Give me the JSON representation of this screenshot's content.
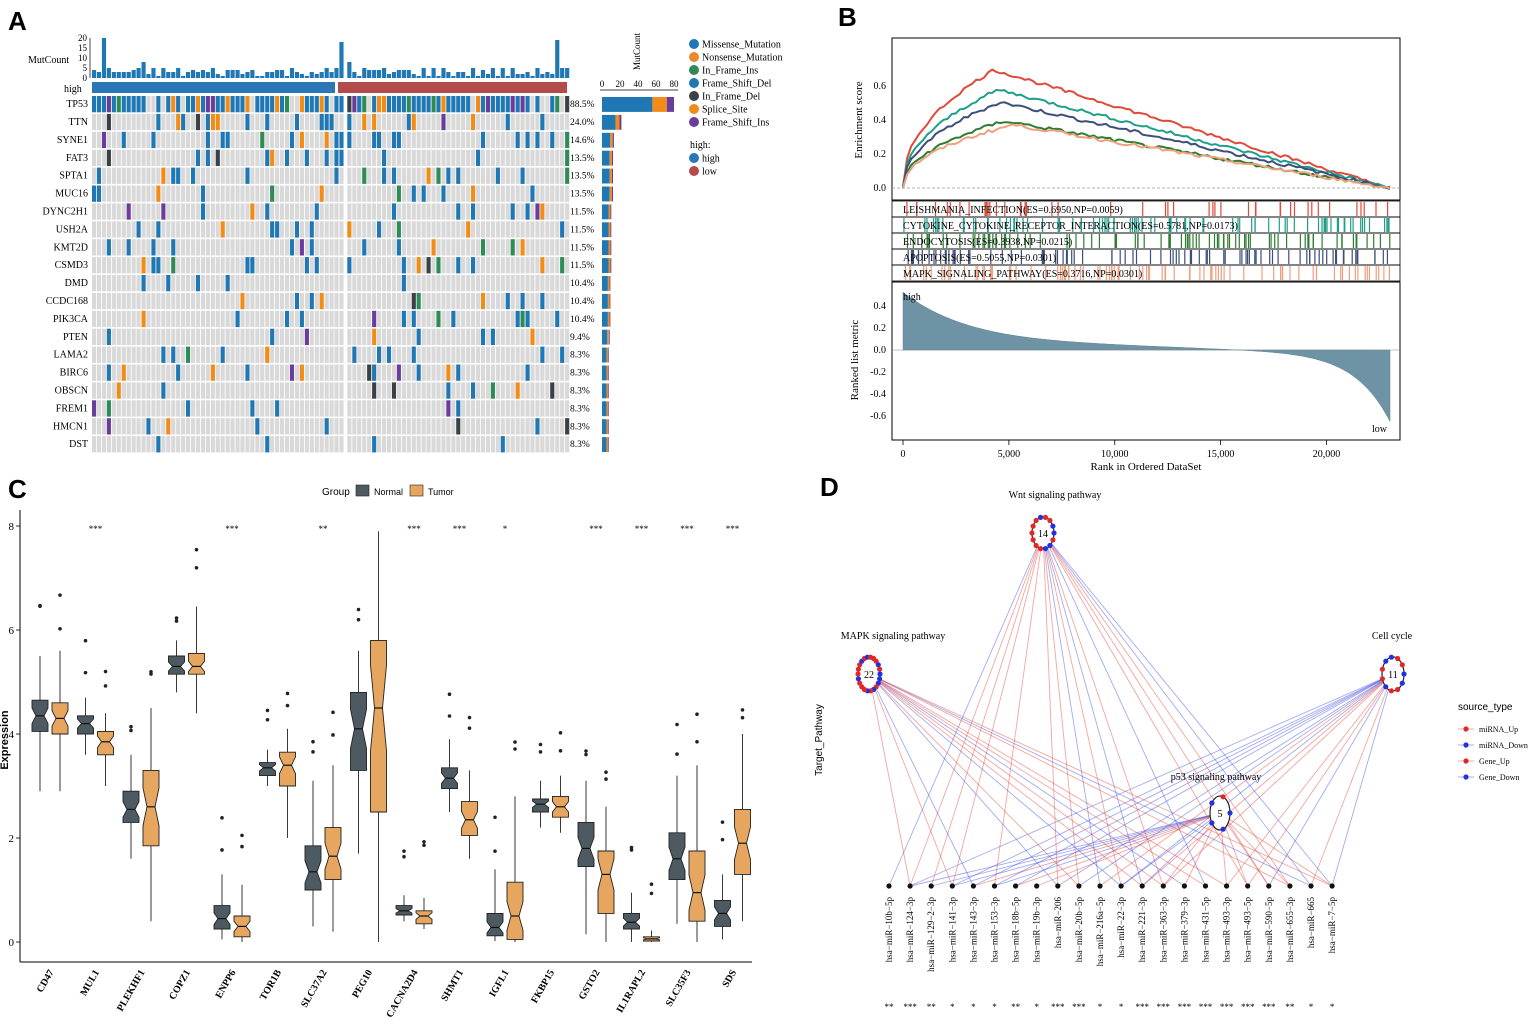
{
  "panels": {
    "A": "A",
    "B": "B",
    "C": "C",
    "D": "D"
  },
  "colors": {
    "missense": "#1f77b4",
    "nonsense": "#e8892b",
    "inframe_ins": "#2e8b57",
    "frameshift_del": "#1f77b4",
    "inframe_del": "#3b3f46",
    "splice": "#f28c18",
    "frameshift_ins": "#6a3d9a",
    "high": "#2b76b7",
    "low": "#b34b4b",
    "normal": "#4d5a61",
    "tumor": "#e7a65f",
    "red": "#e23a2e",
    "blue": "#3344dd"
  },
  "chart_data": [
    {
      "type": "heatmap",
      "panel": "A",
      "title": "Oncoplot",
      "ylabel_top": "MutCount",
      "top_ticks": [
        "20",
        "15",
        "10",
        "5",
        "0"
      ],
      "group_label": "high",
      "bottom_axis_label": "MutCount",
      "bottom_ticks": [
        "0",
        "20",
        "40",
        "60",
        "80"
      ],
      "genes": [
        "TP53",
        "TTN",
        "SYNE1",
        "FAT3",
        "SPTA1",
        "MUC16",
        "DYNC2H1",
        "USH2A",
        "KMT2D",
        "CSMD3",
        "DMD",
        "CCDC168",
        "PIK3CA",
        "PTEN",
        "LAMA2",
        "BIRC6",
        "OBSCN",
        "FREM1",
        "HMCN1",
        "DST"
      ],
      "percents": [
        "88.5%",
        "24.0%",
        "14.6%",
        "13.5%",
        "13.5%",
        "13.5%",
        "11.5%",
        "11.5%",
        "11.5%",
        "11.5%",
        "10.4%",
        "10.4%",
        "10.4%",
        "9.4%",
        "8.3%",
        "8.3%",
        "8.3%",
        "8.3%",
        "8.3%",
        "8.3%"
      ],
      "gene_counts": [
        85,
        23,
        14,
        13,
        13,
        13,
        11,
        11,
        11,
        11,
        10,
        10,
        10,
        9,
        8,
        8,
        8,
        8,
        8,
        8
      ],
      "legend_mutation": [
        "Missense_Mutation",
        "Nonsense_Mutation",
        "In_Frame_Ins",
        "Frame_Shift_Del",
        "In_Frame_Del",
        "Splice_Site",
        "Frame_Shift_Ins"
      ],
      "legend_group_title": "high:",
      "legend_group": [
        "high",
        "low"
      ]
    },
    {
      "type": "line",
      "panel": "B",
      "ylabel": "Enrichment score",
      "xlabel": "Rank in Ordered DataSet",
      "ylabel_bottom": "Ranked list metric",
      "yticks_top": [
        "0.0",
        "0.2",
        "0.4",
        "0.6"
      ],
      "yticks_bottom": [
        "0.4",
        "0.2",
        "0.0",
        "-0.2",
        "-0.4",
        "-0.6"
      ],
      "xticks": [
        "0",
        "5,000",
        "10,000",
        "15,000",
        "20,000"
      ],
      "xlim": [
        0,
        23000
      ],
      "high_label": "high",
      "low_label": "low",
      "series": [
        {
          "name": "LEISHMANIA_INFECTION(ES=0.6950,NP=0.0059)",
          "color": "#e04a3a",
          "peak": 0.695,
          "peak_x": 4300
        },
        {
          "name": "CYTOKINE_CYTOKINE_RECEPTOR_INTERACTION(ES=0.5781,NP=0.0173)",
          "color": "#1f9e89",
          "peak": 0.578,
          "peak_x": 4500
        },
        {
          "name": "ENDOCYTOSIS(ES=0.3938,NP=0.0215)",
          "color": "#2e7d32",
          "peak": 0.394,
          "peak_x": 4800
        },
        {
          "name": "APOPTOSIS(ES=0.5055,NP=0.0301)",
          "color": "#3c4f7c",
          "peak": 0.505,
          "peak_x": 4600
        },
        {
          "name": "MAPK_SIGNALING_PATHWAY(ES=0.3716,NP=0.0301)",
          "color": "#f0a07e",
          "peak": 0.372,
          "peak_x": 5200
        }
      ]
    },
    {
      "type": "bar",
      "panel": "C",
      "title": "Group",
      "ylabel": "Expression",
      "yticks": [
        "0",
        "2",
        "4",
        "6",
        "8"
      ],
      "ylim": [
        0,
        8.4
      ],
      "legend": [
        "Normal",
        "Tumor"
      ],
      "categories": [
        "CD47",
        "MUL1",
        "PLEKHF1",
        "COPZ1",
        "ENPP6",
        "TOR1B",
        "SLC37A2",
        "PEG10",
        "CACNA2D4",
        "SHMT1",
        "IGFL1",
        "FKBP15",
        "GSTO2",
        "IL1RAPL2",
        "SLC35F3",
        "SDS"
      ],
      "significance": [
        "",
        "***",
        "",
        "",
        "***",
        "",
        "**",
        "",
        "***",
        "***",
        "*",
        "",
        "***",
        "***",
        "***",
        "***"
      ],
      "series": [
        {
          "name": "Normal",
          "boxes": [
            [
              2.9,
              4.05,
              4.35,
              4.65,
              5.5
            ],
            [
              3.6,
              4.0,
              4.2,
              4.35,
              4.7
            ],
            [
              1.6,
              2.3,
              2.55,
              2.9,
              3.6
            ],
            [
              4.8,
              5.15,
              5.3,
              5.5,
              5.8
            ],
            [
              0.05,
              0.25,
              0.45,
              0.7,
              1.3
            ],
            [
              3.0,
              3.2,
              3.35,
              3.45,
              3.7
            ],
            [
              0.3,
              1.0,
              1.35,
              1.85,
              3.1
            ],
            [
              1.7,
              3.3,
              4.1,
              4.8,
              5.6
            ],
            [
              0.4,
              0.52,
              0.6,
              0.7,
              0.9
            ],
            [
              2.5,
              2.95,
              3.15,
              3.35,
              3.9
            ],
            [
              0.02,
              0.12,
              0.28,
              0.55,
              1.4
            ],
            [
              2.2,
              2.5,
              2.65,
              2.75,
              3.1
            ],
            [
              0.15,
              1.45,
              1.8,
              2.3,
              3.1
            ],
            [
              0.0,
              0.25,
              0.38,
              0.55,
              0.95
            ],
            [
              0.35,
              1.2,
              1.6,
              2.1,
              3.2
            ],
            [
              0.05,
              0.3,
              0.55,
              0.8,
              1.3
            ]
          ]
        },
        {
          "name": "Tumor",
          "boxes": [
            [
              2.9,
              4.0,
              4.3,
              4.6,
              5.6
            ],
            [
              3.0,
              3.6,
              3.85,
              4.05,
              4.4
            ],
            [
              0.4,
              1.85,
              2.6,
              3.3,
              4.5
            ],
            [
              4.4,
              5.15,
              5.3,
              5.55,
              6.45
            ],
            [
              0.0,
              0.1,
              0.3,
              0.5,
              1.1
            ],
            [
              2.0,
              3.0,
              3.4,
              3.65,
              4.1
            ],
            [
              0.2,
              1.2,
              1.65,
              2.2,
              3.4
            ],
            [
              0.0,
              2.5,
              4.5,
              5.8,
              7.9
            ],
            [
              0.25,
              0.35,
              0.5,
              0.6,
              0.85
            ],
            [
              1.6,
              2.05,
              2.35,
              2.7,
              3.3
            ],
            [
              0.0,
              0.05,
              0.5,
              1.15,
              2.8
            ],
            [
              2.1,
              2.4,
              2.6,
              2.8,
              3.2
            ],
            [
              0.0,
              0.55,
              1.3,
              1.75,
              2.6
            ],
            [
              0.0,
              0.02,
              0.06,
              0.1,
              0.22
            ],
            [
              0.0,
              0.4,
              0.95,
              1.75,
              3.4
            ],
            [
              0.4,
              1.3,
              1.9,
              2.55,
              4.0
            ]
          ]
        }
      ]
    },
    {
      "type": "table",
      "panel": "D",
      "ylabel": "Target_Pathway",
      "legend_title": "source_type",
      "legend": [
        "miRNA_Up",
        "miRNA_Down",
        "Gene_Up",
        "Gene_Down"
      ],
      "pathways": [
        {
          "name": "Wnt signaling pathway",
          "count": "14"
        },
        {
          "name": "MAPK signaling pathway",
          "count": "22"
        },
        {
          "name": "Cell cycle",
          "count": "11"
        },
        {
          "name": "p53 signaling pathway",
          "count": "5"
        }
      ],
      "mirnas": [
        "hsa−miR−10b−5p",
        "hsa−miR−124−3p",
        "hsa−miR−129−2−3p",
        "hsa−miR−141−3p",
        "hsa−miR−143−3p",
        "hsa−miR−153−3p",
        "hsa−miR−18b−5p",
        "hsa−miR−19b−3p",
        "hsa−miR−206",
        "hsa−miR−20b−5p",
        "hsa−miR−216a−5p",
        "hsa−miR−22−3p",
        "hsa−miR−221−3p",
        "hsa−miR−363−3p",
        "hsa−miR−379−3p",
        "hsa−miR−431−5p",
        "hsa−miR−493−3p",
        "hsa−miR−493−5p",
        "hsa−miR−590−5p",
        "hsa−miR−655−3p",
        "hsa−miR−665",
        "hsa−miR−7−5p"
      ],
      "mirna_sig": [
        "**",
        "***",
        "**",
        "*",
        "*",
        "*",
        "**",
        "*",
        "***",
        "***",
        "*",
        "*",
        "***",
        "***",
        "***",
        "***",
        "***",
        "***",
        "***",
        "**",
        "*",
        "*"
      ]
    }
  ]
}
